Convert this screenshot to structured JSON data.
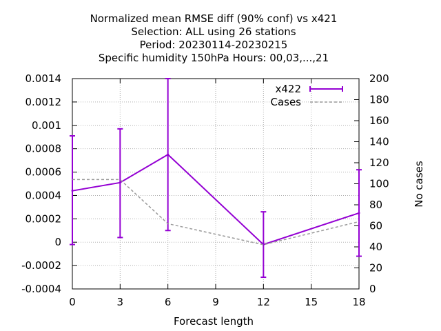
{
  "chart_data": {
    "type": "line",
    "title_lines": [
      "Normalized mean RMSE diff (90% conf) vs x421",
      "Selection: ALL using    26 stations",
      "Period: 20230114-20230215",
      "Specific humidity 150hPa   Hours:  00,03,...,21"
    ],
    "xlabel": "Forecast length",
    "ylabel": "",
    "y2label": "No cases",
    "x": [
      0,
      3,
      6,
      12,
      18
    ],
    "xlim": [
      0,
      18
    ],
    "xticks": [
      0,
      3,
      6,
      9,
      12,
      15,
      18
    ],
    "ylim": [
      -0.0004,
      0.0014
    ],
    "yticks": [
      "-0.0004",
      "-0.0002",
      "0",
      "0.0002",
      "0.0004",
      "0.0006",
      "0.0008",
      "0.001",
      "0.0012",
      "0.0014"
    ],
    "y2lim": [
      0,
      200
    ],
    "y2ticks": [
      "0",
      "20",
      "40",
      "60",
      "80",
      "100",
      "120",
      "140",
      "160",
      "180",
      "200"
    ],
    "grid": true,
    "legend_position": "top-right",
    "series": [
      {
        "name": "x422",
        "axis": "left",
        "color": "#9400d3",
        "style": "solid-errorbars",
        "values": [
          0.00044,
          0.00051,
          0.00075,
          -2e-05,
          0.00025
        ],
        "err_low": [
          -2e-05,
          4e-05,
          0.0001,
          -0.0003,
          -0.00012
        ],
        "err_high": [
          0.00091,
          0.00097,
          0.0014,
          0.00026,
          0.00062
        ]
      },
      {
        "name": "Cases",
        "axis": "right",
        "color": "#999999",
        "style": "dashed",
        "values": [
          104,
          104,
          62,
          42,
          64
        ]
      }
    ]
  }
}
